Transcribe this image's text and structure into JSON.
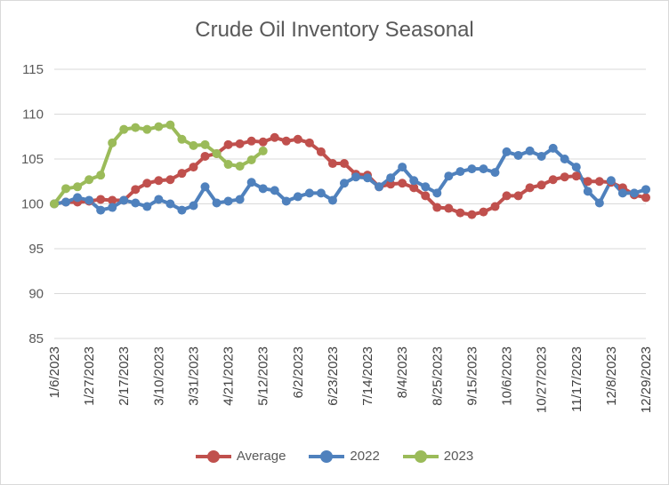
{
  "chart_data": {
    "type": "line",
    "title": "Crude Oil Inventory Seasonal",
    "xlabel": "",
    "ylabel": "",
    "ylim": [
      85,
      115
    ],
    "yticks": [
      85,
      90,
      95,
      100,
      105,
      110,
      115
    ],
    "grid": true,
    "legend": "bottom",
    "x_tick_labels": [
      "1/6/2023",
      "1/27/2023",
      "2/17/2023",
      "3/10/2023",
      "3/31/2023",
      "4/21/2023",
      "5/12/2023",
      "6/2/2023",
      "6/23/2023",
      "7/14/2023",
      "8/4/2023",
      "8/25/2023",
      "9/15/2023",
      "10/6/2023",
      "10/27/2023",
      "11/17/2023",
      "12/8/2023",
      "12/29/2023"
    ],
    "x_count": 52,
    "series": [
      {
        "name": "Average",
        "color": "#c0504d",
        "values": [
          100,
          100.2,
          100.2,
          100.3,
          100.5,
          100.4,
          100.4,
          101.6,
          102.3,
          102.6,
          102.7,
          103.4,
          104.1,
          105.3,
          105.6,
          106.6,
          106.7,
          107.0,
          106.9,
          107.4,
          107.0,
          107.2,
          106.8,
          105.8,
          104.5,
          104.5,
          103.3,
          103.2,
          101.9,
          102.2,
          102.3,
          101.8,
          100.9,
          99.6,
          99.5,
          99.0,
          98.8,
          99.1,
          99.7,
          100.9,
          100.9,
          101.8,
          102.1,
          102.7,
          103.0,
          103.1,
          102.5,
          102.5,
          102.4,
          101.8,
          101.0,
          100.7
        ]
      },
      {
        "name": "2022",
        "color": "#4f81bd",
        "values": [
          100,
          100.2,
          100.7,
          100.4,
          99.3,
          99.6,
          100.4,
          100.1,
          99.7,
          100.5,
          100.0,
          99.3,
          99.8,
          101.9,
          100.1,
          100.3,
          100.5,
          102.4,
          101.7,
          101.5,
          100.3,
          100.8,
          101.2,
          101.2,
          100.4,
          102.3,
          103.0,
          102.9,
          101.9,
          102.9,
          104.1,
          102.6,
          101.9,
          101.2,
          103.1,
          103.6,
          103.9,
          103.9,
          103.5,
          105.8,
          105.4,
          105.9,
          105.3,
          106.2,
          105.0,
          104.1,
          101.4,
          100.1,
          102.6,
          101.2,
          101.2,
          101.6
        ]
      },
      {
        "name": "2023",
        "color": "#9bbb59",
        "values": [
          100,
          101.7,
          101.9,
          102.7,
          103.2,
          106.8,
          108.3,
          108.5,
          108.3,
          108.6,
          108.8,
          107.2,
          106.5,
          106.6,
          105.6,
          104.4,
          104.2,
          104.9,
          105.9
        ]
      }
    ]
  }
}
